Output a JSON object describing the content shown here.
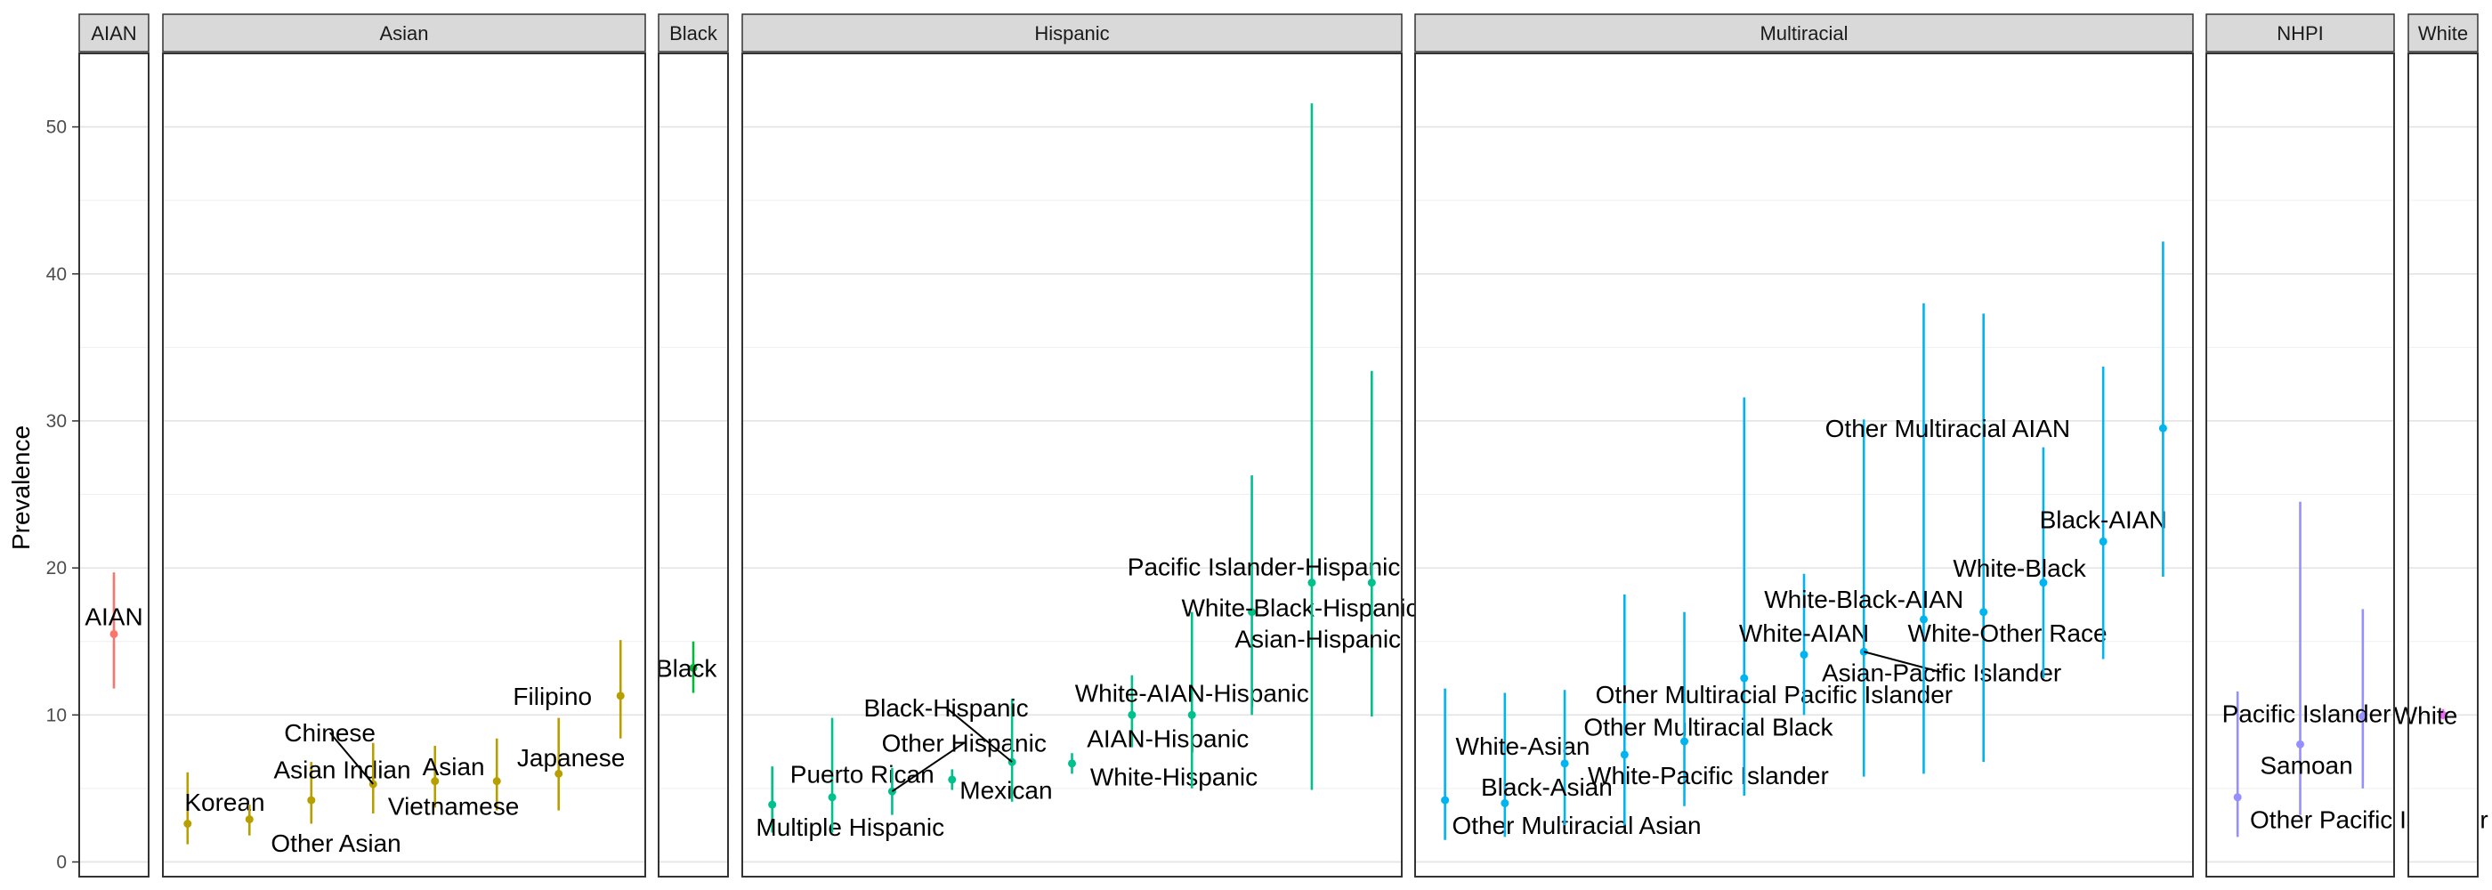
{
  "chart_data": {
    "type": "errorbar",
    "ylabel": "Prevalence",
    "ylim": [
      -1,
      55
    ],
    "y_ticks": [
      "0",
      "10",
      "20",
      "30",
      "40",
      "50"
    ],
    "grid": true,
    "legend": "none",
    "facets": [
      {
        "name": "AIAN",
        "color": "#F8766D",
        "x_range": [
          0.5,
          1.5
        ],
        "points": [
          {
            "label": "AIAN",
            "x": 1,
            "y": 15.5,
            "low": 11.8,
            "high": 19.7,
            "label_x": 1,
            "label_y": 16.7
          }
        ]
      },
      {
        "name": "Asian",
        "color": "#B79F00",
        "x_range": [
          0.6,
          8.4
        ],
        "points": [
          {
            "label": "Korean",
            "x": 1,
            "y": 2.6,
            "low": 1.2,
            "high": 6.1,
            "label_x": 1.6,
            "label_y": 4.1
          },
          {
            "label": "Other Asian",
            "x": 2,
            "y": 2.9,
            "low": 1.8,
            "high": 3.9,
            "label_x": 3.4,
            "label_y": 1.3
          },
          {
            "label": "Asian Indian",
            "x": 3,
            "y": 4.2,
            "low": 2.6,
            "high": 6.8,
            "label_x": 3.5,
            "label_y": 6.3
          },
          {
            "label": "Chinese",
            "x": 4,
            "y": 5.3,
            "low": 3.3,
            "high": 8.1,
            "label_x": 3.3,
            "label_y": 8.8
          },
          {
            "label": "Asian",
            "x": 5,
            "y": 5.5,
            "low": 3.7,
            "high": 7.9,
            "label_x": 5.3,
            "label_y": 6.5
          },
          {
            "label": "Vietnamese",
            "x": 6,
            "y": 5.5,
            "low": 3.5,
            "high": 8.4,
            "label_x": 5.3,
            "label_y": 3.8
          },
          {
            "label": "Japanese",
            "x": 7,
            "y": 6.0,
            "low": 3.5,
            "high": 9.8,
            "label_x": 7.2,
            "label_y": 7.1
          },
          {
            "label": "Filipino",
            "x": 8,
            "y": 11.3,
            "low": 8.4,
            "high": 15.1,
            "label_x": 6.9,
            "label_y": 11.3
          }
        ]
      },
      {
        "name": "Black",
        "color": "#00BA38",
        "x_range": [
          0.5,
          1.5
        ],
        "points": [
          {
            "label": "Black",
            "x": 1,
            "y": 13.2,
            "low": 11.5,
            "high": 15.0,
            "label_x": 0.9,
            "label_y": 13.2
          }
        ]
      },
      {
        "name": "Hispanic",
        "color": "#00C08B",
        "x_range": [
          0.5,
          11.5
        ],
        "points": [
          {
            "label": "Multiple Hispanic",
            "x": 1,
            "y": 3.9,
            "low": 2.0,
            "high": 6.5,
            "label_x": 2.3,
            "label_y": 2.4
          },
          {
            "label": "Puerto Rican",
            "x": 2,
            "y": 4.4,
            "low": 2.0,
            "high": 9.8,
            "label_x": 2.5,
            "label_y": 6.0
          },
          {
            "label": "Other Hispanic",
            "x": 3,
            "y": 4.8,
            "low": 3.2,
            "high": 6.4,
            "label_x": 4.2,
            "label_y": 8.1
          },
          {
            "label": "Mexican",
            "x": 4,
            "y": 5.6,
            "low": 4.9,
            "high": 6.3,
            "label_x": 4.9,
            "label_y": 4.9
          },
          {
            "label": "Black-Hispanic",
            "x": 5,
            "y": 6.8,
            "low": 4.1,
            "high": 11.1,
            "label_x": 3.9,
            "label_y": 10.5
          },
          {
            "label": "White-Hispanic",
            "x": 6,
            "y": 6.7,
            "low": 6.0,
            "high": 7.4,
            "label_x": 7.7,
            "label_y": 5.8
          },
          {
            "label": "AIAN-Hispanic",
            "x": 7,
            "y": 10.0,
            "low": 7.8,
            "high": 12.7,
            "label_x": 7.6,
            "label_y": 8.4
          },
          {
            "label": "White-AIAN-Hispanic",
            "x": 8,
            "y": 10.0,
            "low": 5.0,
            "high": 17.0,
            "label_x": 8.0,
            "label_y": 11.5
          },
          {
            "label": "White-Black-Hispanic",
            "x": 9,
            "y": 17.0,
            "low": 10.0,
            "high": 26.3,
            "label_x": 9.8,
            "label_y": 17.3
          },
          {
            "label": "Pacific Islander-Hispanic",
            "x": 10,
            "y": 19.0,
            "low": 4.9,
            "high": 51.6,
            "label_x": 9.2,
            "label_y": 20.1
          },
          {
            "label": "Asian-Hispanic",
            "x": 11,
            "y": 19.0,
            "low": 9.9,
            "high": 33.4,
            "label_x": 10.1,
            "label_y": 15.2
          }
        ]
      },
      {
        "name": "Multiracial",
        "color": "#00B4EF",
        "x_range": [
          0.5,
          13.5
        ],
        "points": [
          {
            "label": "Other Multiracial Asian",
            "x": 1,
            "y": 4.2,
            "low": 1.5,
            "high": 11.8,
            "label_x": 3.2,
            "label_y": 2.5
          },
          {
            "label": "White-Asian",
            "x": 2,
            "y": 4.0,
            "low": 1.7,
            "high": 11.5,
            "label_x": 2.3,
            "label_y": 7.9
          },
          {
            "label": "Black-Asian",
            "x": 3,
            "y": 6.7,
            "low": 2.5,
            "high": 11.7,
            "label_x": 2.7,
            "label_y": 5.1
          },
          {
            "label": "Other Multiracial Black",
            "x": 4,
            "y": 7.3,
            "low": 2.5,
            "high": 18.2,
            "label_x": 5.4,
            "label_y": 9.2
          },
          {
            "label": "White-Pacific Islander",
            "x": 5,
            "y": 8.2,
            "low": 3.8,
            "high": 17.0,
            "label_x": 5.4,
            "label_y": 5.9
          },
          {
            "label": "Other Multiracial Pacific Islander",
            "x": 6,
            "y": 12.5,
            "low": 4.5,
            "high": 31.6,
            "label_x": 6.5,
            "label_y": 11.4
          },
          {
            "label": "White-AIAN",
            "x": 7,
            "y": 14.1,
            "low": 10.0,
            "high": 19.6,
            "label_x": 7.0,
            "label_y": 15.6
          },
          {
            "label": "Asian-Pacific Islander",
            "x": 8,
            "y": 14.3,
            "low": 5.8,
            "high": 30.1,
            "label_x": 9.3,
            "label_y": 12.9
          },
          {
            "label": "White-Black-AIAN",
            "x": 9,
            "y": 16.5,
            "low": 6.0,
            "high": 38.0,
            "label_x": 8.0,
            "label_y": 17.9
          },
          {
            "label": "White-Other Race",
            "x": 10,
            "y": 17.0,
            "low": 6.8,
            "high": 37.3,
            "label_x": 10.4,
            "label_y": 15.6
          },
          {
            "label": "White-Black",
            "x": 11,
            "y": 19.0,
            "low": 12.5,
            "high": 28.2,
            "label_x": 10.6,
            "label_y": 20.0
          },
          {
            "label": "Black-AIAN",
            "x": 12,
            "y": 21.8,
            "low": 13.8,
            "high": 33.7,
            "label_x": 12.0,
            "label_y": 23.3
          },
          {
            "label": "Other Multiracial AIAN",
            "x": 13,
            "y": 29.5,
            "low": 19.4,
            "high": 42.2,
            "label_x": 9.4,
            "label_y": 29.5
          }
        ]
      },
      {
        "name": "NHPI",
        "color": "#9590FF",
        "x_range": [
          0.5,
          3.5
        ],
        "points": [
          {
            "label": "Other Pacific Islander",
            "x": 1,
            "y": 4.4,
            "low": 1.7,
            "high": 11.6,
            "label_x": 3.1,
            "label_y": 2.9
          },
          {
            "label": "Samoan",
            "x": 2,
            "y": 8.0,
            "low": 3.2,
            "high": 24.5,
            "label_x": 2.1,
            "label_y": 6.6
          },
          {
            "label": "Pacific Islander",
            "x": 3,
            "y": 9.9,
            "low": 5.0,
            "high": 17.2,
            "label_x": 2.1,
            "label_y": 10.1
          }
        ]
      },
      {
        "name": "White",
        "color": "#E76BF3",
        "x_range": [
          0.5,
          1.5
        ],
        "points": [
          {
            "label": "White",
            "x": 1,
            "y": 10.0,
            "low": 9.7,
            "high": 10.4,
            "label_x": 0.75,
            "label_y": 10.0
          }
        ]
      }
    ],
    "leader_lines": [
      {
        "facet": "Asian",
        "point": "Chinese"
      },
      {
        "facet": "Hispanic",
        "point": "Other Hispanic"
      },
      {
        "facet": "Hispanic",
        "point": "Black-Hispanic"
      },
      {
        "facet": "Multiracial",
        "point": "Asian-Pacific Islander"
      }
    ]
  }
}
